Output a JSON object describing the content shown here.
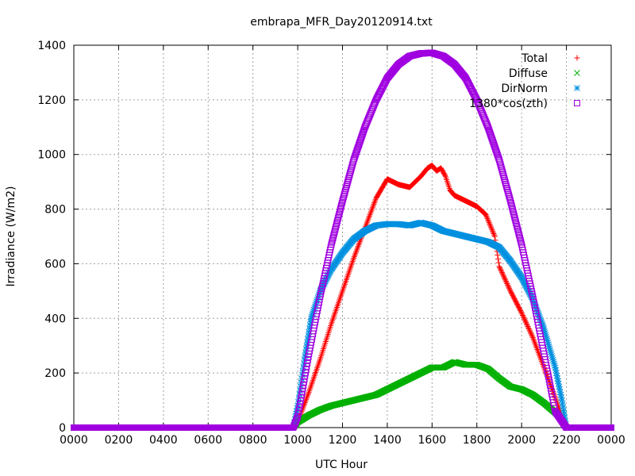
{
  "chart_data": {
    "type": "scatter",
    "title": "embrapa_MFR_Day20120914.txt",
    "xlabel": "UTC Hour",
    "ylabel": "Irradiance (W/m2)",
    "xlim": [
      0,
      24
    ],
    "ylim": [
      0,
      1400
    ],
    "x_ticks": [
      {
        "value": 0,
        "label": "0000"
      },
      {
        "value": 2,
        "label": "0200"
      },
      {
        "value": 4,
        "label": "0400"
      },
      {
        "value": 6,
        "label": "0600"
      },
      {
        "value": 8,
        "label": "0800"
      },
      {
        "value": 10,
        "label": "1000"
      },
      {
        "value": 12,
        "label": "1200"
      },
      {
        "value": 14,
        "label": "1400"
      },
      {
        "value": 16,
        "label": "1600"
      },
      {
        "value": 18,
        "label": "1800"
      },
      {
        "value": 20,
        "label": "2000"
      },
      {
        "value": 22,
        "label": "2200"
      },
      {
        "value": 24,
        "label": "0000"
      }
    ],
    "y_ticks": [
      0,
      200,
      400,
      600,
      800,
      1000,
      1200,
      1400
    ],
    "grid": true,
    "legend_position": "top-right",
    "series": [
      {
        "name": "Total",
        "color": "#ff0000",
        "marker": "plus",
        "x": [
          0,
          2,
          4,
          6,
          8,
          9.8,
          10.0,
          10.5,
          11.0,
          11.5,
          12.0,
          12.5,
          13.0,
          13.5,
          14.0,
          14.5,
          15.0,
          15.5,
          15.8,
          16.0,
          16.2,
          16.4,
          16.6,
          16.8,
          17.0,
          17.5,
          18.0,
          18.4,
          18.8,
          19.0,
          19.5,
          20.0,
          20.5,
          21.0,
          21.5,
          21.8,
          22.0,
          24
        ],
        "y": [
          0,
          0,
          0,
          0,
          0,
          0,
          20,
          130,
          250,
          380,
          500,
          620,
          730,
          840,
          910,
          890,
          880,
          920,
          950,
          960,
          940,
          950,
          920,
          870,
          850,
          830,
          810,
          780,
          700,
          590,
          500,
          420,
          330,
          220,
          110,
          40,
          0,
          0
        ]
      },
      {
        "name": "Diffuse",
        "color": "#00b000",
        "marker": "cross",
        "x": [
          0,
          2,
          4,
          6,
          8,
          9.8,
          10.0,
          10.5,
          11.0,
          11.5,
          12.0,
          12.5,
          13.0,
          13.5,
          14.0,
          14.5,
          15.0,
          15.5,
          16.0,
          16.5,
          17.0,
          17.5,
          18.0,
          18.5,
          19.0,
          19.5,
          20.0,
          20.5,
          21.0,
          21.5,
          21.8,
          22.0,
          24
        ],
        "y": [
          0,
          0,
          0,
          0,
          0,
          0,
          20,
          45,
          65,
          80,
          90,
          100,
          110,
          120,
          140,
          160,
          180,
          200,
          220,
          220,
          240,
          230,
          230,
          215,
          180,
          150,
          140,
          120,
          90,
          55,
          30,
          0,
          0
        ]
      },
      {
        "name": "DirNorm",
        "color": "#0090e0",
        "marker": "star",
        "x": [
          0,
          2,
          4,
          6,
          8,
          9.8,
          10.0,
          10.3,
          10.6,
          11.0,
          11.5,
          12.0,
          12.5,
          13.0,
          13.5,
          14.0,
          14.5,
          15.0,
          15.5,
          16.0,
          16.5,
          17.0,
          17.5,
          18.0,
          18.5,
          19.0,
          19.5,
          20.0,
          20.5,
          21.0,
          21.5,
          21.8,
          22.0,
          24
        ],
        "y": [
          0,
          0,
          0,
          0,
          0,
          0,
          80,
          250,
          400,
          500,
          580,
          640,
          690,
          720,
          740,
          745,
          745,
          740,
          750,
          740,
          720,
          710,
          700,
          690,
          680,
          660,
          610,
          550,
          470,
          360,
          220,
          100,
          0,
          0
        ]
      },
      {
        "name": "1380*cos(zth)",
        "color": "#a000e0",
        "marker": "square",
        "x": [
          0,
          2,
          4,
          6,
          8,
          9.8,
          10.0,
          10.5,
          11.0,
          11.5,
          12.0,
          12.5,
          13.0,
          13.5,
          14.0,
          14.5,
          15.0,
          15.5,
          16.0,
          16.5,
          17.0,
          17.5,
          18.0,
          18.5,
          19.0,
          19.5,
          20.0,
          20.5,
          21.0,
          21.5,
          22.0,
          24
        ],
        "y": [
          0,
          0,
          0,
          0,
          0,
          0,
          40,
          270,
          480,
          670,
          830,
          980,
          1100,
          1200,
          1280,
          1330,
          1360,
          1370,
          1372,
          1360,
          1330,
          1280,
          1200,
          1100,
          980,
          830,
          670,
          480,
          270,
          60,
          0,
          0
        ]
      }
    ]
  }
}
